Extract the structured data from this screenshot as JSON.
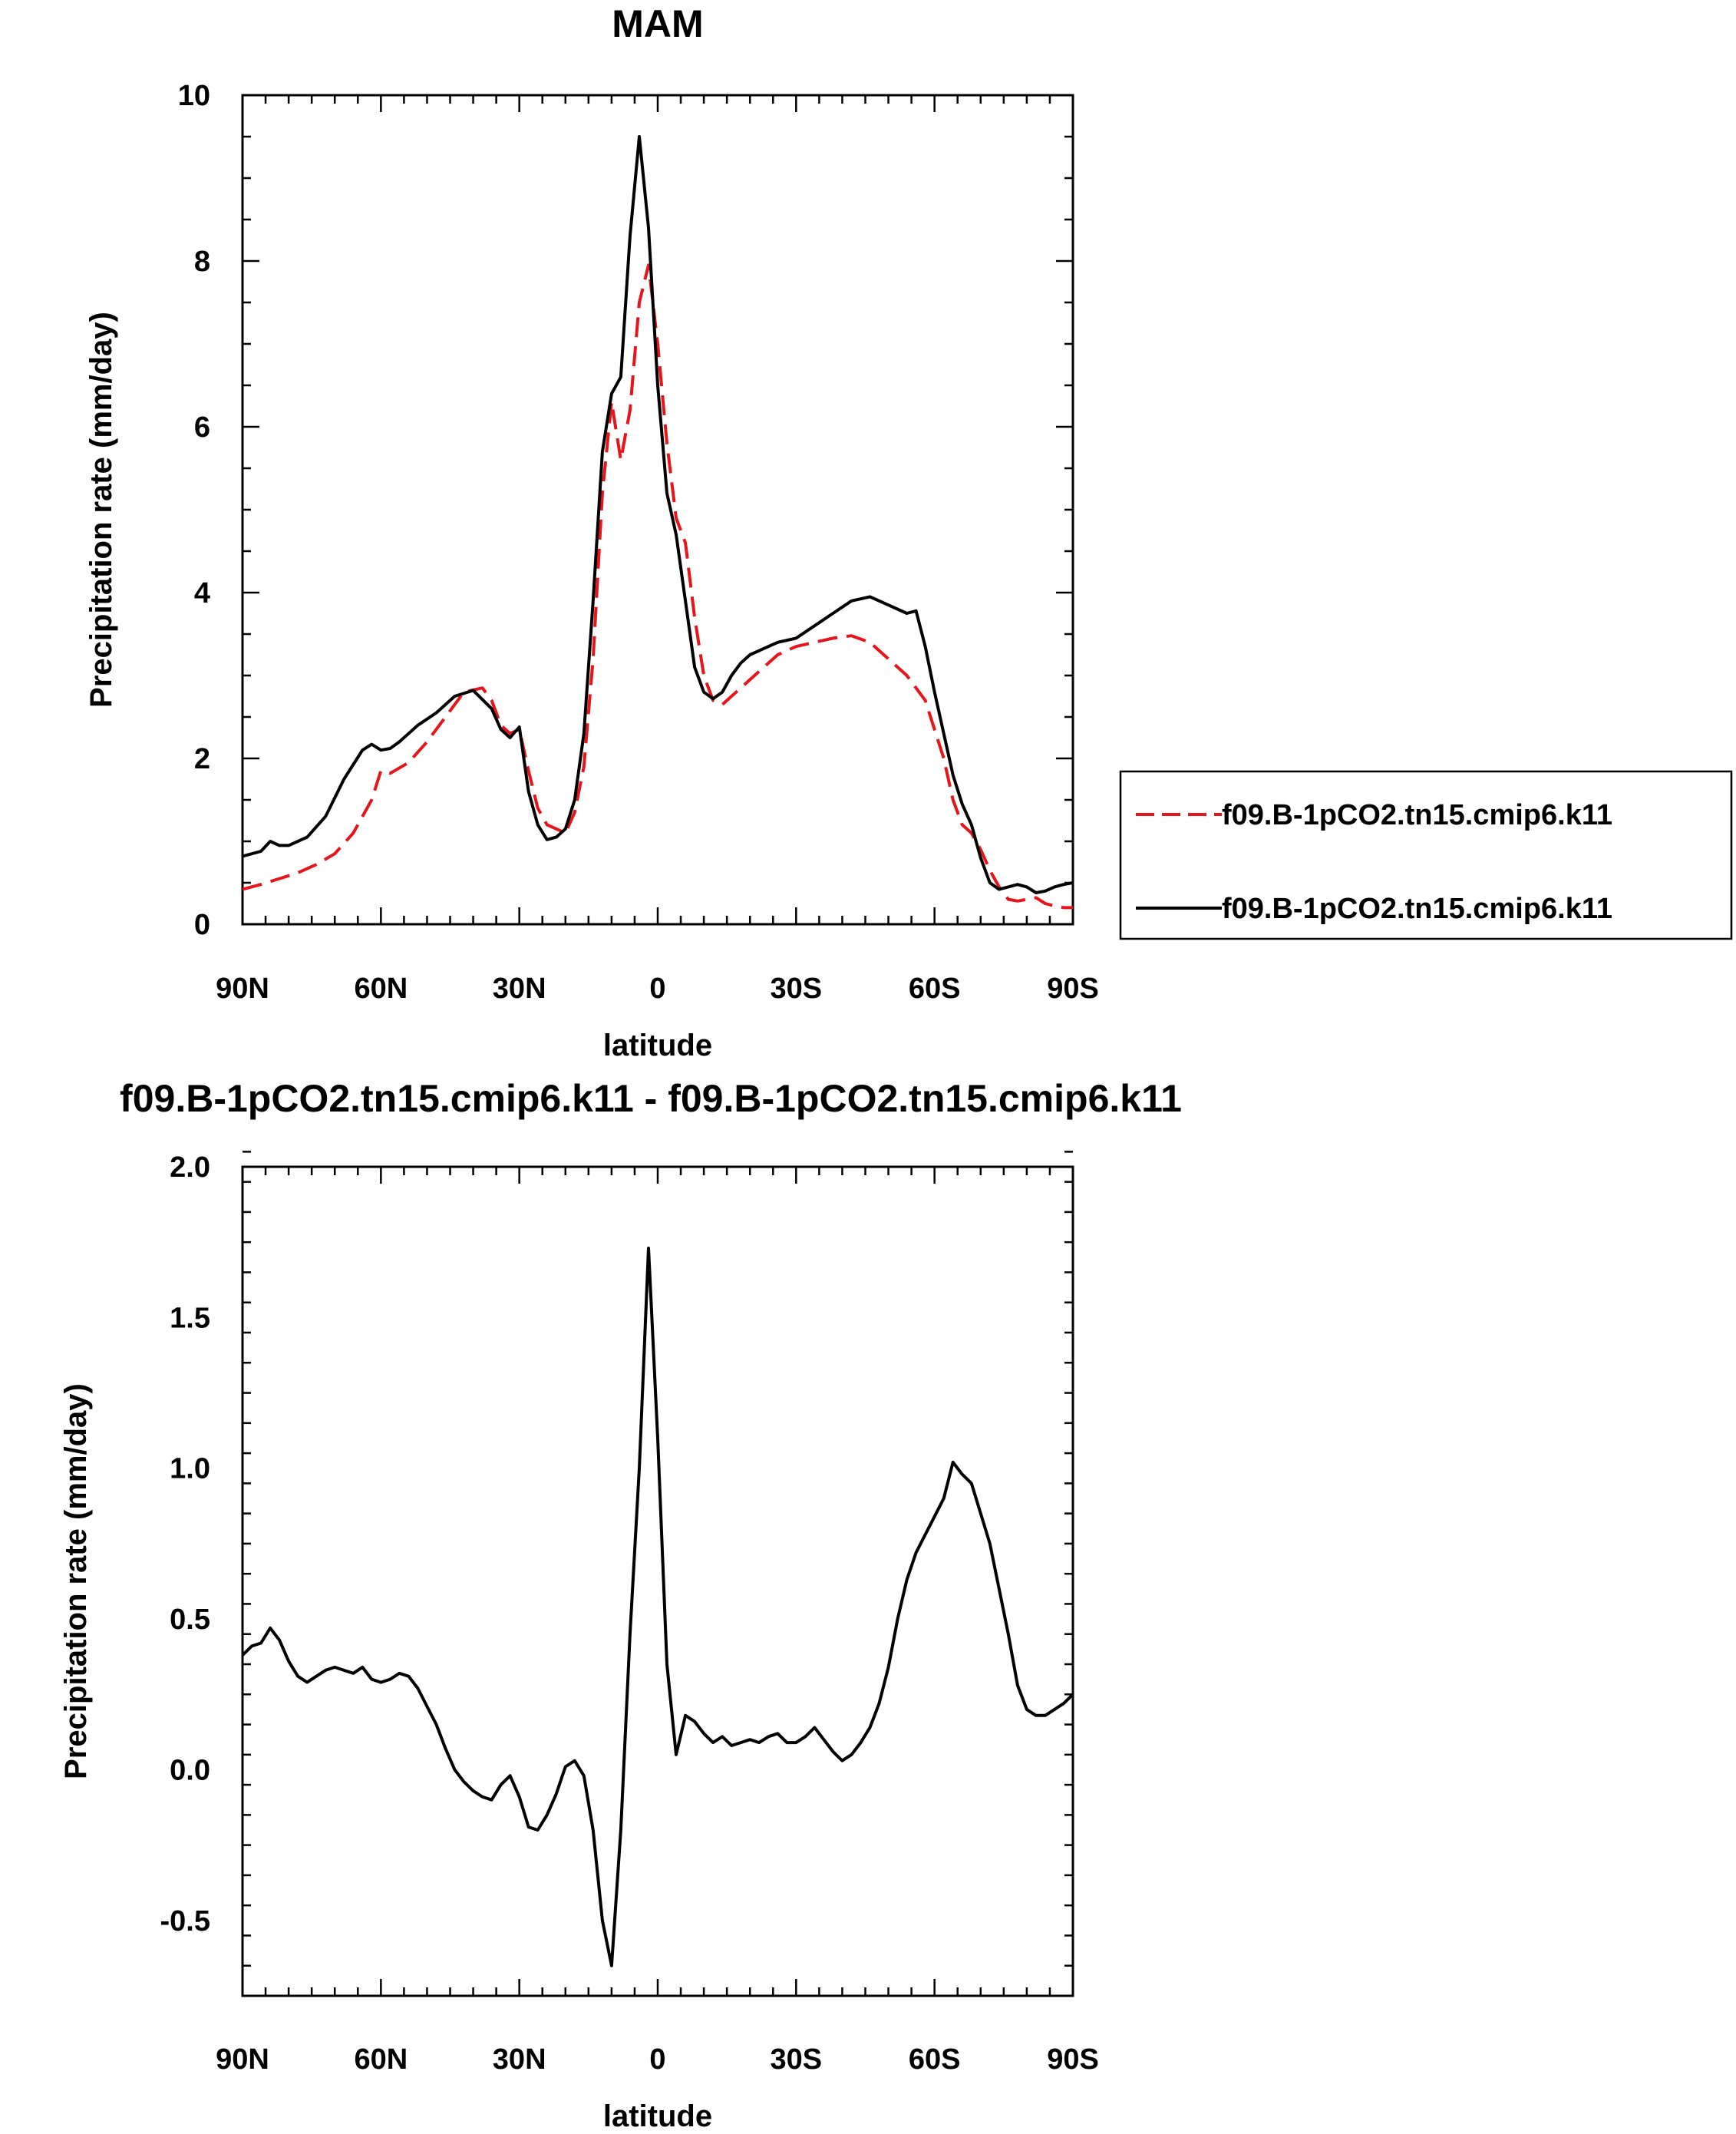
{
  "chart_data": [
    {
      "type": "line",
      "title": "MAM",
      "xlabel": "latitude",
      "ylabel": "Precipitation rate (mm/day)",
      "xlim": [
        90,
        -90
      ],
      "ylim": [
        0,
        10
      ],
      "x_ticks": [
        90,
        60,
        30,
        0,
        -30,
        -60,
        -90
      ],
      "x_tick_labels": [
        "90N",
        "60N",
        "30N",
        "0",
        "30S",
        "60S",
        "90S"
      ],
      "y_ticks": [
        0,
        2,
        4,
        6,
        8,
        10
      ],
      "y_tick_labels": [
        "0",
        "2",
        "4",
        "6",
        "8",
        "10"
      ],
      "legend": {
        "placement": "right"
      },
      "series": [
        {
          "name": "f09.B-1pCO2.tn15.cmip6.k11",
          "color": "#e8141b",
          "style": "dashed",
          "x": [
            90,
            86,
            82,
            78,
            74,
            70,
            66,
            62,
            60,
            58,
            54,
            50,
            46,
            42,
            38,
            36,
            34,
            32,
            30,
            28,
            26,
            24,
            22,
            20,
            18,
            16,
            14,
            12,
            10,
            8,
            6,
            4,
            2,
            0,
            -2,
            -4,
            -6,
            -8,
            -10,
            -12,
            -14,
            -16,
            -18,
            -20,
            -22,
            -24,
            -26,
            -28,
            -30,
            -34,
            -38,
            -42,
            -46,
            -50,
            -54,
            -58,
            -62,
            -64,
            -66,
            -68,
            -70,
            -72,
            -74,
            -76,
            -78,
            -80,
            -82,
            -84,
            -86,
            -88,
            -90
          ],
          "y": [
            0.42,
            0.48,
            0.55,
            0.62,
            0.72,
            0.85,
            1.1,
            1.5,
            1.85,
            1.82,
            1.95,
            2.2,
            2.5,
            2.8,
            2.85,
            2.7,
            2.4,
            2.3,
            2.35,
            1.85,
            1.4,
            1.2,
            1.15,
            1.1,
            1.35,
            1.9,
            3.2,
            5.2,
            6.3,
            5.6,
            6.2,
            7.5,
            7.95,
            7.0,
            5.8,
            4.9,
            4.6,
            3.7,
            3.0,
            2.7,
            2.65,
            2.75,
            2.85,
            2.95,
            3.05,
            3.15,
            3.25,
            3.3,
            3.35,
            3.4,
            3.45,
            3.48,
            3.4,
            3.2,
            3.0,
            2.7,
            2.0,
            1.5,
            1.2,
            1.1,
            0.9,
            0.65,
            0.45,
            0.3,
            0.28,
            0.3,
            0.32,
            0.25,
            0.22,
            0.2,
            0.2
          ]
        },
        {
          "name": "f09.B-1pCO2.tn15.cmip6.k11",
          "color": "#000000",
          "style": "solid",
          "x": [
            90,
            86,
            84,
            82,
            80,
            76,
            72,
            68,
            64,
            62,
            60,
            58,
            56,
            52,
            48,
            44,
            40,
            36,
            34,
            32,
            30,
            28,
            26,
            24,
            22,
            20,
            18,
            16,
            14,
            12,
            10,
            8,
            6,
            4,
            2,
            0,
            -2,
            -4,
            -6,
            -8,
            -10,
            -12,
            -14,
            -16,
            -18,
            -20,
            -22,
            -24,
            -26,
            -30,
            -34,
            -38,
            -42,
            -46,
            -50,
            -54,
            -56,
            -58,
            -60,
            -62,
            -64,
            -66,
            -68,
            -70,
            -72,
            -74,
            -76,
            -78,
            -80,
            -82,
            -84,
            -86,
            -88,
            -90
          ],
          "y": [
            0.82,
            0.88,
            1.0,
            0.95,
            0.95,
            1.05,
            1.3,
            1.75,
            2.1,
            2.17,
            2.1,
            2.12,
            2.2,
            2.4,
            2.55,
            2.75,
            2.82,
            2.6,
            2.35,
            2.25,
            2.38,
            1.6,
            1.2,
            1.02,
            1.05,
            1.15,
            1.5,
            2.3,
            3.9,
            5.7,
            6.4,
            6.6,
            8.3,
            9.5,
            8.4,
            6.5,
            5.2,
            4.7,
            3.9,
            3.1,
            2.8,
            2.72,
            2.8,
            3.0,
            3.15,
            3.25,
            3.3,
            3.35,
            3.4,
            3.45,
            3.6,
            3.75,
            3.9,
            3.95,
            3.85,
            3.75,
            3.78,
            3.35,
            2.8,
            2.3,
            1.8,
            1.45,
            1.2,
            0.8,
            0.5,
            0.42,
            0.45,
            0.48,
            0.45,
            0.38,
            0.4,
            0.45,
            0.48,
            0.5
          ]
        }
      ]
    },
    {
      "type": "line",
      "title": "f09.B-1pCO2.tn15.cmip6.k11 - f09.B-1pCO2.tn15.cmip6.k11",
      "xlabel": "latitude",
      "ylabel": "Precipitation rate (mm/day)",
      "xlim": [
        90,
        -90
      ],
      "ylim": [
        -0.75,
        2.0
      ],
      "x_ticks": [
        90,
        60,
        30,
        0,
        -30,
        -60,
        -90
      ],
      "x_tick_labels": [
        "90N",
        "60N",
        "30N",
        "0",
        "30S",
        "60S",
        "90S"
      ],
      "y_ticks": [
        -0.5,
        0.0,
        0.5,
        1.0,
        1.5,
        2.0
      ],
      "y_tick_labels": [
        "-0.5",
        "0.0",
        "0.5",
        "1.0",
        "1.5",
        "2.0"
      ],
      "series": [
        {
          "color": "#000000",
          "style": "solid",
          "x": [
            90,
            88,
            86,
            84,
            82,
            80,
            78,
            76,
            74,
            72,
            70,
            68,
            66,
            64,
            62,
            60,
            58,
            56,
            54,
            52,
            50,
            48,
            46,
            44,
            42,
            40,
            38,
            36,
            34,
            32,
            30,
            28,
            26,
            24,
            22,
            20,
            18,
            16,
            14,
            12,
            10,
            8,
            6,
            4,
            2,
            0,
            -2,
            -4,
            -6,
            -8,
            -10,
            -12,
            -14,
            -16,
            -18,
            -20,
            -22,
            -24,
            -26,
            -28,
            -30,
            -32,
            -34,
            -36,
            -38,
            -40,
            -42,
            -44,
            -46,
            -48,
            -50,
            -52,
            -54,
            -56,
            -58,
            -60,
            -62,
            -64,
            -66,
            -68,
            -70,
            -72,
            -74,
            -76,
            -78,
            -80,
            -82,
            -84,
            -86,
            -88,
            -90
          ],
          "y": [
            0.38,
            0.41,
            0.42,
            0.47,
            0.43,
            0.36,
            0.31,
            0.29,
            0.31,
            0.33,
            0.34,
            0.33,
            0.32,
            0.34,
            0.3,
            0.29,
            0.3,
            0.32,
            0.31,
            0.27,
            0.21,
            0.15,
            0.07,
            0.0,
            -0.04,
            -0.07,
            -0.09,
            -0.1,
            -0.05,
            -0.02,
            -0.09,
            -0.19,
            -0.2,
            -0.15,
            -0.08,
            0.01,
            0.03,
            -0.02,
            -0.2,
            -0.5,
            -0.65,
            -0.2,
            0.45,
            1.0,
            1.73,
            1.1,
            0.35,
            0.05,
            0.18,
            0.16,
            0.12,
            0.09,
            0.11,
            0.08,
            0.09,
            0.1,
            0.09,
            0.11,
            0.12,
            0.09,
            0.09,
            0.11,
            0.14,
            0.1,
            0.06,
            0.03,
            0.05,
            0.09,
            0.14,
            0.22,
            0.34,
            0.5,
            0.63,
            0.72,
            0.78,
            0.84,
            0.9,
            1.02,
            0.98,
            0.95,
            0.85,
            0.75,
            0.6,
            0.45,
            0.28,
            0.2,
            0.18,
            0.18,
            0.2,
            0.22,
            0.25
          ]
        }
      ]
    }
  ]
}
